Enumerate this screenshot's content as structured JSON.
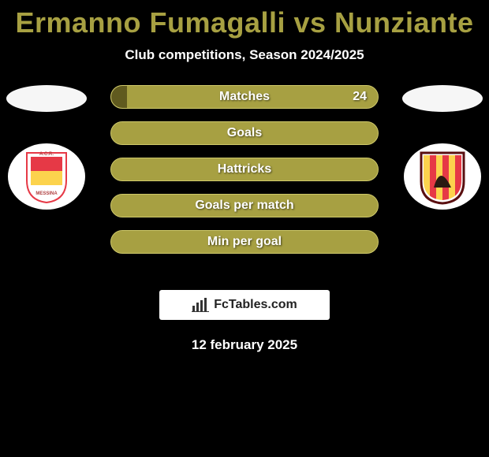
{
  "colors": {
    "title": "#a7a042",
    "barMain": "#a7a042",
    "barAlt": "#605a1f",
    "barBorder": "#cfc96a",
    "leftEllipse": "#f6f6f6",
    "rightEllipse": "#f6f6f6",
    "leftBadgeBg": "#ffffff",
    "rightBadgeBg": "#ffffff"
  },
  "title": "Ermanno Fumagalli vs Nunziante",
  "subtitle": "Club competitions, Season 2024/2025",
  "bars": [
    {
      "label": "Matches",
      "leftPct": 6,
      "rightPct": 94,
      "rightValue": "24",
      "leftColor": "#605a1f",
      "rightColor": "#a7a042"
    },
    {
      "label": "Goals",
      "leftPct": 50,
      "rightPct": 50,
      "rightValue": "",
      "leftColor": "#a7a042",
      "rightColor": "#a7a042"
    },
    {
      "label": "Hattricks",
      "leftPct": 50,
      "rightPct": 50,
      "rightValue": "",
      "leftColor": "#a7a042",
      "rightColor": "#a7a042"
    },
    {
      "label": "Goals per match",
      "leftPct": 50,
      "rightPct": 50,
      "rightValue": "",
      "leftColor": "#a7a042",
      "rightColor": "#a7a042"
    },
    {
      "label": "Min per goal",
      "leftPct": 50,
      "rightPct": 50,
      "rightValue": "",
      "leftColor": "#a7a042",
      "rightColor": "#a7a042"
    }
  ],
  "leftClub": {
    "name": "A.C.R. MESSINA",
    "shield_top": "#e63946",
    "shield_bottom": "#fcd34d"
  },
  "rightClub": {
    "name": "BENEVENTO",
    "stripe_a": "#e63946",
    "stripe_b": "#fcd34d"
  },
  "branding": "FcTables.com",
  "date": "12 february 2025"
}
